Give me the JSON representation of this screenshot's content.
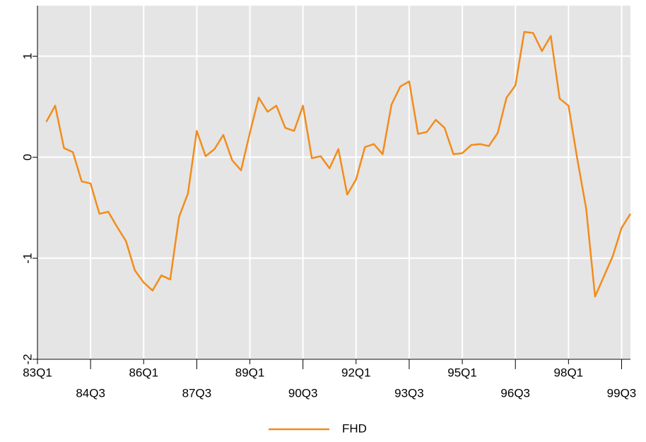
{
  "chart_data": {
    "type": "line",
    "x": [
      1,
      2,
      3,
      4,
      5,
      6,
      7,
      8,
      9,
      10,
      11,
      12,
      13,
      14,
      15,
      16,
      17,
      18,
      19,
      20,
      21,
      22,
      23,
      24,
      25,
      26,
      27,
      28,
      29,
      30,
      31,
      32,
      33,
      34,
      35,
      36,
      37,
      38,
      39,
      40,
      41,
      42,
      43,
      44,
      45,
      46,
      47,
      48,
      49,
      50,
      51,
      52,
      53,
      54,
      55,
      56,
      57,
      58,
      59,
      60,
      61,
      62,
      63,
      64,
      65,
      66,
      67
    ],
    "series": [
      {
        "name": "FHD",
        "color": "#f28c1c",
        "values": [
          0.35,
          0.51,
          0.09,
          0.05,
          -0.24,
          -0.26,
          -0.56,
          -0.54,
          -0.69,
          -0.83,
          -1.12,
          -1.24,
          -1.32,
          -1.17,
          -1.21,
          -0.59,
          -0.36,
          0.26,
          0.01,
          0.08,
          0.22,
          -0.03,
          -0.13,
          0.24,
          0.59,
          0.45,
          0.51,
          0.29,
          0.26,
          0.51,
          -0.01,
          0.01,
          -0.11,
          0.08,
          -0.37,
          -0.22,
          0.1,
          0.13,
          0.03,
          0.52,
          0.7,
          0.75,
          0.23,
          0.25,
          0.37,
          0.29,
          0.03,
          0.04,
          0.12,
          0.13,
          0.11,
          0.24,
          0.59,
          0.71,
          1.24,
          1.23,
          1.05,
          1.2,
          0.58,
          0.51,
          -0.02,
          -0.51,
          -1.38,
          -1.18,
          -0.98,
          -0.7,
          -0.56
        ]
      }
    ],
    "xlim": [
      0,
      67
    ],
    "xticks": [
      {
        "value": 0,
        "label": "83Q1"
      },
      {
        "value": 6,
        "label": "84Q3"
      },
      {
        "value": 12,
        "label": "86Q1"
      },
      {
        "value": 18,
        "label": "87Q3"
      },
      {
        "value": 24,
        "label": "89Q1"
      },
      {
        "value": 30,
        "label": "90Q3"
      },
      {
        "value": 36,
        "label": "92Q1"
      },
      {
        "value": 42,
        "label": "93Q3"
      },
      {
        "value": 48,
        "label": "95Q1"
      },
      {
        "value": 54,
        "label": "96Q3"
      },
      {
        "value": 60,
        "label": "98Q1"
      },
      {
        "value": 66,
        "label": "99Q3"
      }
    ],
    "ylim": [
      -2,
      1.5
    ],
    "yticks": [
      -2,
      -1,
      0,
      1
    ],
    "grid": true
  }
}
